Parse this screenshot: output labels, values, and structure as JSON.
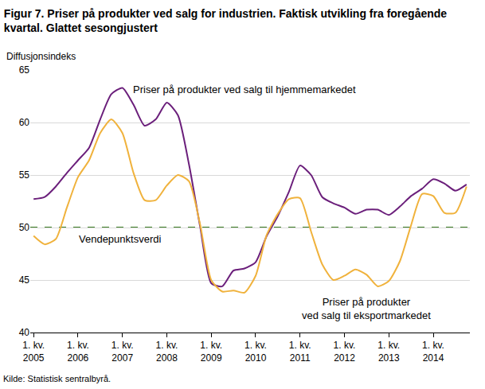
{
  "chart_data": {
    "type": "line",
    "title": "Figur 7. Priser på produkter ved salg for industrien. Faktisk utvikling fra foregående\nkvartal. Glattet sesongjustert",
    "y_label": "Diffusjonsindeks",
    "source": "Kilde: Statistisk sentralbyrå.",
    "categories": [
      "1. kv. 2005",
      null,
      null,
      null,
      "1. kv. 2006",
      null,
      null,
      null,
      "1. kv. 2007",
      null,
      null,
      null,
      "1. kv. 2008",
      null,
      null,
      null,
      "1. kv. 2009",
      null,
      null,
      null,
      "1. kv. 2010",
      null,
      null,
      null,
      "1. kv. 2011",
      null,
      null,
      null,
      "1. kv. 2012",
      null,
      null,
      null,
      "1. kv. 2013",
      null,
      null,
      null,
      "1. kv. 2014",
      null,
      null,
      null
    ],
    "series": [
      {
        "name": "Priser på produkter ved salg til hjemmemarkedet",
        "color": "#6b1f7b",
        "values": [
          52.7,
          52.9,
          53.9,
          55.2,
          56.4,
          57.6,
          60.3,
          62.7,
          63.3,
          61.7,
          59.7,
          60.3,
          61.9,
          60.7,
          56.0,
          50.1,
          44.7,
          44.4,
          45.9,
          46.1,
          46.7,
          49.2,
          51.1,
          53.4,
          55.9,
          55.0,
          52.9,
          52.3,
          51.9,
          51.3,
          51.7,
          51.7,
          51.2,
          52.0,
          53.0,
          53.7,
          54.6,
          54.2,
          53.5,
          54.1
        ]
      },
      {
        "name": "Priser på produkter\nved salg til eksportmarkedet",
        "color": "#f0b23c",
        "values": [
          49.2,
          48.4,
          48.9,
          51.9,
          54.8,
          56.4,
          59.0,
          60.3,
          59.0,
          55.2,
          52.6,
          52.6,
          54.0,
          55.0,
          54.4,
          50.3,
          45.0,
          43.9,
          44.0,
          43.8,
          45.4,
          49.3,
          51.3,
          52.7,
          52.8,
          49.6,
          46.5,
          45.0,
          45.4,
          46.0,
          45.5,
          44.4,
          44.9,
          46.8,
          50.2,
          53.2,
          53.0,
          51.4,
          51.4,
          53.9
        ]
      }
    ],
    "ylim": [
      40,
      65
    ],
    "yticks": [
      40,
      45,
      50,
      55,
      60,
      65
    ],
    "grid": true,
    "annotations": [
      {
        "text": "Vendepunktsverdi",
        "y": 50,
        "color": "#3a7d23",
        "line_style": "dashed"
      }
    ]
  }
}
